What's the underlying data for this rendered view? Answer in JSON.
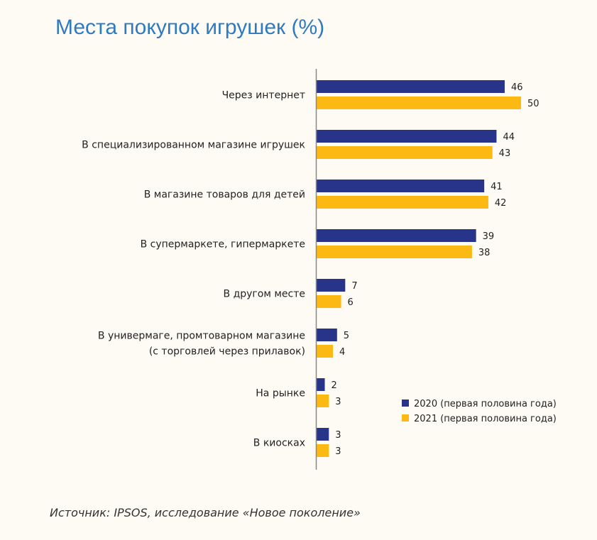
{
  "chart_data": {
    "type": "bar",
    "orientation": "horizontal",
    "title": "Места покупок игрушек (%)",
    "categories": [
      [
        "Через интернет"
      ],
      [
        "В специализированном магазине игрушек"
      ],
      [
        "В магазине товаров для детей"
      ],
      [
        "В супермаркете, гипермаркете"
      ],
      [
        "В другом месте"
      ],
      [
        "В универмаге, промтоварном магазине",
        "(с торговлей через прилавок)"
      ],
      [
        "На рынке"
      ],
      [
        "В киосках"
      ]
    ],
    "series": [
      {
        "name": "2020 (первая половина года)",
        "color": "#28338a",
        "values": [
          46,
          44,
          41,
          39,
          7,
          5,
          2,
          3
        ]
      },
      {
        "name": "2021 (первая половина года)",
        "color": "#fcb813",
        "values": [
          50,
          43,
          42,
          38,
          6,
          4,
          3,
          3
        ]
      }
    ],
    "xlim": [
      0,
      50
    ],
    "grid": false,
    "legend_position": "bottom-right"
  },
  "source": "Источник: IPSOS, исследование «Новое поколение»"
}
